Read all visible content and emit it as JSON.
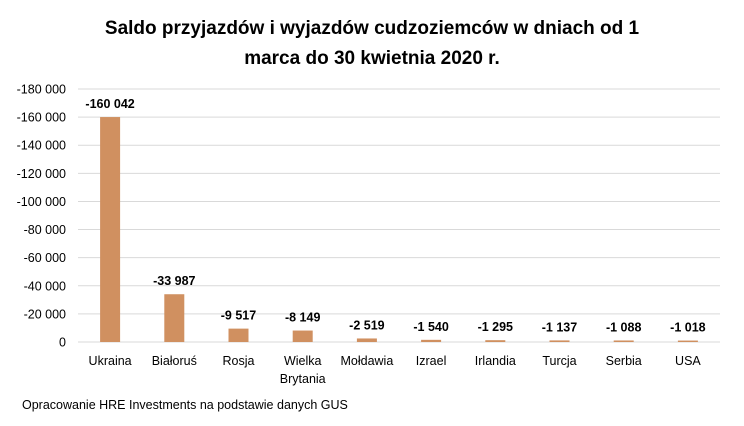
{
  "chart_data": {
    "type": "bar",
    "title": [
      "Saldo przyjazdów i wyjazdów cudzoziemców w dniach od 1",
      "marca do 30 kwietnia 2020 r."
    ],
    "categories": [
      [
        "Ukraina"
      ],
      [
        "Białoruś"
      ],
      [
        "Rosja"
      ],
      [
        "Wielka",
        "Brytania"
      ],
      [
        "Mołdawia"
      ],
      [
        "Izrael"
      ],
      [
        "Irlandia"
      ],
      [
        "Turcja"
      ],
      [
        "Serbia"
      ],
      [
        "USA"
      ]
    ],
    "values": [
      -160042,
      -33987,
      -9517,
      -8149,
      -2519,
      -1540,
      -1295,
      -1137,
      -1088,
      -1018
    ],
    "data_labels": [
      "-160 042",
      "-33 987",
      "-9 517",
      "-8 149",
      "-2 519",
      "-1 540",
      "-1 295",
      "-1 137",
      "-1 088",
      "-1 018"
    ],
    "yticks": [
      0,
      -20000,
      -40000,
      -60000,
      -80000,
      -100000,
      -120000,
      -140000,
      -160000,
      -180000
    ],
    "ytick_labels": [
      "0",
      "-20 000",
      "-40 000",
      "-60 000",
      "-80 000",
      "-100 000",
      "-120 000",
      "-140 000",
      "-160 000",
      "-180 000"
    ],
    "ylim": [
      0,
      -180000
    ],
    "y_reversed": true,
    "grid": true,
    "xlabel": "",
    "ylabel": "",
    "bar_color": "#D09060",
    "grid_color": "#D9D9D9"
  },
  "source": "Opracowanie HRE Investments na podstawie danych GUS"
}
